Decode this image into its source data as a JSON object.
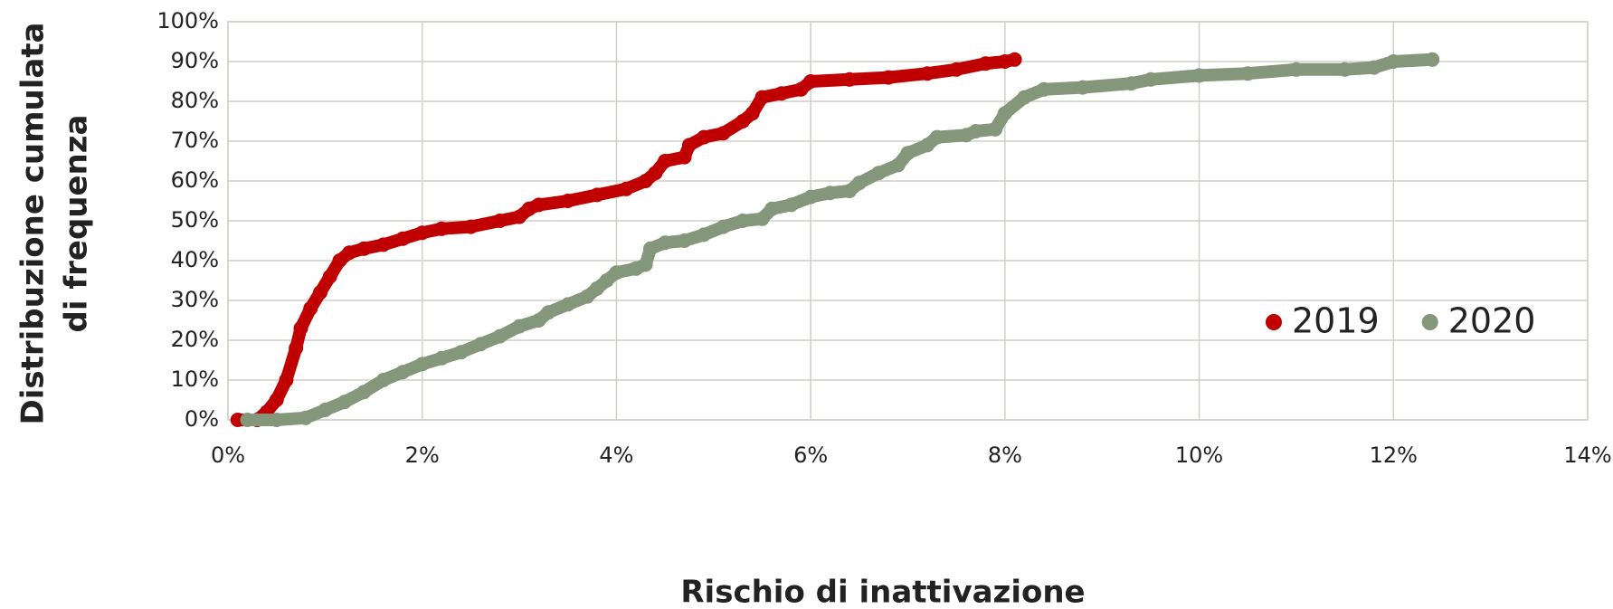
{
  "chart_data": {
    "type": "scatter",
    "xlabel": "Rischio di inattivazione",
    "ylabel": [
      "Distribuzione cumulata",
      "di frequenza"
    ],
    "xlim": [
      0,
      14
    ],
    "xticks": [
      {
        "value": 0,
        "label": "0%"
      },
      {
        "value": 2,
        "label": "2%"
      },
      {
        "value": 4,
        "label": "4%"
      },
      {
        "value": 6,
        "label": "6%"
      },
      {
        "value": 8,
        "label": "8%"
      },
      {
        "value": 10,
        "label": "10%"
      },
      {
        "value": 12,
        "label": "12%"
      },
      {
        "value": 14,
        "label": "14%"
      }
    ],
    "ylim": [
      0,
      100
    ],
    "yticks": [
      {
        "value": 0,
        "label": "0%"
      },
      {
        "value": 10,
        "label": "10%"
      },
      {
        "value": 20,
        "label": "20%"
      },
      {
        "value": 30,
        "label": "30%"
      },
      {
        "value": 40,
        "label": "40%"
      },
      {
        "value": 50,
        "label": "50%"
      },
      {
        "value": 60,
        "label": "60%"
      },
      {
        "value": 70,
        "label": "70%"
      },
      {
        "value": 80,
        "label": "80%"
      },
      {
        "value": 90,
        "label": "90%"
      },
      {
        "value": 100,
        "label": "100%"
      }
    ],
    "grid": true,
    "legend": "right",
    "series": [
      {
        "name": "2019",
        "color": "#c00000",
        "x": [
          0.1,
          0.3,
          0.4,
          0.5,
          0.6,
          0.7,
          0.75,
          0.85,
          0.95,
          1.05,
          1.15,
          1.25,
          1.4,
          1.6,
          1.8,
          2.0,
          2.2,
          2.5,
          2.8,
          3.0,
          3.1,
          3.2,
          3.5,
          3.8,
          4.1,
          4.3,
          4.4,
          4.5,
          4.7,
          4.75,
          4.9,
          5.1,
          5.3,
          5.4,
          5.5,
          5.7,
          5.9,
          6.0,
          6.4,
          6.8,
          7.2,
          7.5,
          7.8,
          8.0,
          8.1
        ],
        "values": [
          0,
          0,
          2,
          5,
          10,
          18,
          23,
          28,
          32,
          36,
          40,
          42,
          43,
          44,
          45.5,
          47,
          48,
          48.5,
          50,
          51,
          53,
          54,
          55,
          56.5,
          58,
          60,
          62,
          65,
          66,
          69,
          71,
          72,
          75,
          77,
          81,
          82,
          83,
          85,
          85.5,
          86,
          87,
          88,
          89.5,
          90,
          90.5
        ]
      },
      {
        "name": "2020",
        "color": "#84977a",
        "x": [
          0.2,
          0.5,
          0.8,
          1.0,
          1.2,
          1.4,
          1.6,
          1.8,
          2.0,
          2.2,
          2.4,
          2.6,
          2.8,
          3.0,
          3.2,
          3.3,
          3.5,
          3.7,
          3.8,
          3.9,
          4.0,
          4.2,
          4.3,
          4.35,
          4.5,
          4.7,
          4.9,
          5.1,
          5.3,
          5.5,
          5.6,
          5.8,
          6.0,
          6.2,
          6.4,
          6.5,
          6.7,
          6.9,
          7.0,
          7.2,
          7.3,
          7.6,
          7.7,
          7.9,
          8.0,
          8.2,
          8.4,
          8.8,
          9.3,
          9.5,
          10.0,
          10.5,
          11.0,
          11.5,
          11.8,
          12.0,
          12.4
        ],
        "values": [
          0,
          0,
          0.5,
          2.5,
          4.5,
          7,
          10,
          12,
          14,
          15.5,
          17,
          19,
          21,
          23.5,
          25,
          27,
          29,
          31,
          33,
          35,
          37,
          38,
          39,
          43,
          44.5,
          45,
          46.5,
          48.5,
          50,
          50.5,
          53,
          54,
          56,
          57,
          57.5,
          59.5,
          62,
          64,
          67,
          69,
          71,
          71.5,
          72.5,
          73,
          77,
          81,
          83,
          83.5,
          84.5,
          85.5,
          86.5,
          87,
          88,
          88,
          88.5,
          90,
          90.5
        ]
      }
    ]
  }
}
